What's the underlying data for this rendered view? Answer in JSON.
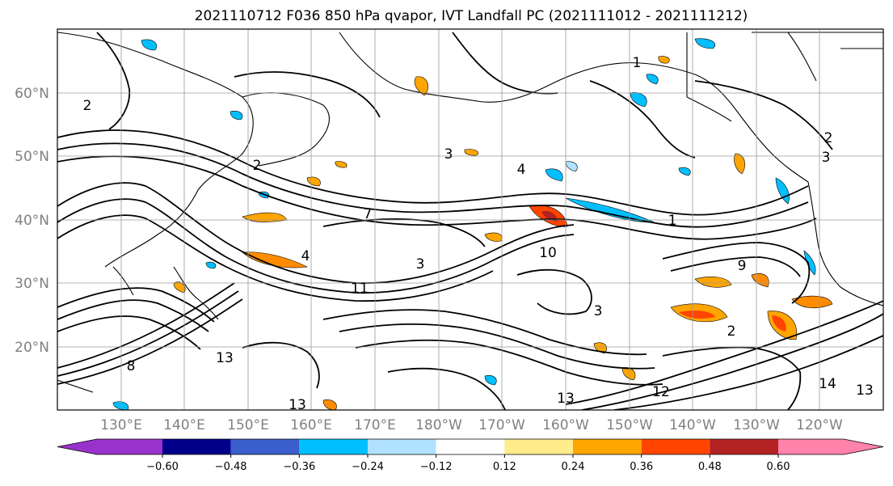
{
  "title": "2021110712 F036 850 hPa qvapor, IVT Landfall PC (2021111012 - 2021111212)",
  "map": {
    "lat_labels": [
      "60°N",
      "50°N",
      "40°N",
      "30°N",
      "20°N"
    ],
    "lon_labels": [
      "130°E",
      "140°E",
      "150°E",
      "160°E",
      "170°E",
      "180°W",
      "170°W",
      "160°W",
      "150°W",
      "140°W",
      "130°W",
      "120°W"
    ],
    "contour_labels": [
      "1",
      "2",
      "2",
      "3",
      "3",
      "4",
      "7",
      "10",
      "11",
      "13",
      "13",
      "13",
      "12",
      "14",
      "13",
      "2",
      "1",
      "2",
      "3",
      "3",
      "4",
      "9",
      "8"
    ]
  },
  "colorbar": {
    "colors": [
      "#9932cc",
      "#00008b",
      "#3a5fcd",
      "#00bfff",
      "#b0e2ff",
      "#ffffff",
      "#ffec8b",
      "#ffa500",
      "#ff4500",
      "#b22222",
      "#ff82ab"
    ],
    "tick_labels": [
      "−0.60",
      "−0.48",
      "−0.36",
      "−0.24",
      "−0.12",
      "0.12",
      "0.24",
      "0.36",
      "0.48",
      "0.60"
    ]
  }
}
